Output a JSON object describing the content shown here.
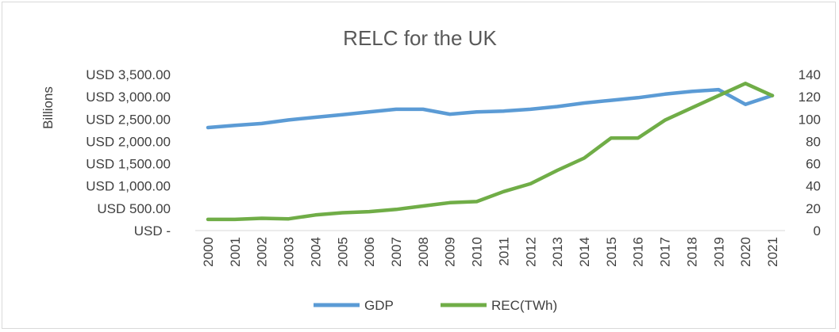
{
  "chart_data": {
    "type": "line",
    "title": "RELC for the UK",
    "ylabel_left": "Billions",
    "left_axis_ticks": [
      "USD -",
      "USD 500.00",
      "USD 1,000.00",
      "USD 1,500.00",
      "USD 2,000.00",
      "USD 2,500.00",
      "USD 3,000.00",
      "USD 3,500.00"
    ],
    "right_axis_ticks": [
      "0",
      "20",
      "40",
      "60",
      "80",
      "100",
      "120",
      "140"
    ],
    "ylim_left": [
      0,
      3500
    ],
    "ylim_right": [
      0,
      140
    ],
    "grid": false,
    "legend_position": "bottom",
    "categories": [
      "2000",
      "2001",
      "2002",
      "2003",
      "2004",
      "2005",
      "2006",
      "2007",
      "2008",
      "2009",
      "2010",
      "2011",
      "2012",
      "2013",
      "2014",
      "2015",
      "2016",
      "2017",
      "2018",
      "2019",
      "2020",
      "2021"
    ],
    "series": [
      {
        "name": "GDP",
        "axis": "left",
        "color": "#5b9bd5",
        "values": [
          2310,
          2360,
          2400,
          2480,
          2540,
          2600,
          2660,
          2720,
          2720,
          2610,
          2660,
          2680,
          2720,
          2780,
          2860,
          2920,
          2980,
          3060,
          3120,
          3160,
          2830,
          3030
        ]
      },
      {
        "name": "REC(TWh)",
        "axis": "right",
        "color": "#70ad47",
        "values": [
          10,
          10,
          11,
          10.5,
          14,
          16,
          17,
          19,
          22,
          25,
          26,
          35,
          42,
          54,
          65,
          83,
          83,
          99,
          110,
          121,
          132,
          121
        ]
      }
    ]
  }
}
